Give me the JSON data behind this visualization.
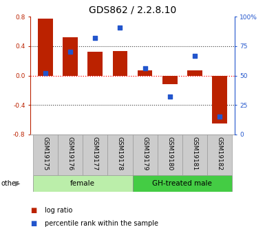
{
  "title": "GDS862 / 2.2.8.10",
  "samples": [
    "GSM19175",
    "GSM19176",
    "GSM19177",
    "GSM19178",
    "GSM19179",
    "GSM19180",
    "GSM19181",
    "GSM19182"
  ],
  "log_ratio": [
    0.77,
    0.52,
    0.32,
    0.33,
    0.07,
    -0.12,
    0.07,
    -0.65
  ],
  "percentile": [
    52,
    70,
    82,
    91,
    56,
    32,
    67,
    15
  ],
  "bar_color": "#bb2200",
  "dot_color": "#2255cc",
  "ylim_left": [
    -0.8,
    0.8
  ],
  "ylim_right": [
    0,
    100
  ],
  "yticks_left": [
    -0.8,
    -0.4,
    0.0,
    0.4,
    0.8
  ],
  "yticks_right": [
    0,
    25,
    50,
    75,
    100
  ],
  "ytick_labels_right": [
    "0",
    "25",
    "50",
    "75",
    "100%"
  ],
  "groups": [
    {
      "label": "female",
      "start": 0,
      "end": 4,
      "color": "#bbeeaa"
    },
    {
      "label": "GH-treated male",
      "start": 4,
      "end": 8,
      "color": "#44cc44"
    }
  ],
  "legend_bar_label": "log ratio",
  "legend_dot_label": "percentile rank within the sample",
  "other_label": "other",
  "background_color": "#ffffff",
  "plot_bg_color": "#ffffff",
  "hline_color": "#ff0000",
  "dotted_color": "#333333",
  "title_fontsize": 10,
  "tick_label_fontsize": 6.5,
  "legend_fontsize": 7
}
